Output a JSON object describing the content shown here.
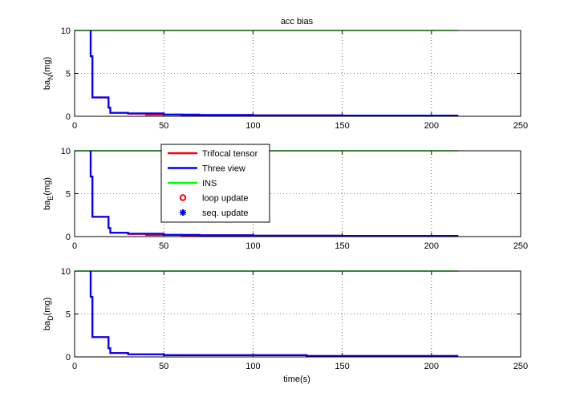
{
  "chart_data": {
    "type": "line",
    "title": "acc bias",
    "xlabel": "time(s)",
    "xlim": [
      0,
      250
    ],
    "xticks": [
      "0",
      "50",
      "100",
      "150",
      "200",
      "250"
    ],
    "grid": true,
    "legend": {
      "placement": "upper-left of second subplot",
      "entries": [
        {
          "name": "Trifocal tensor",
          "color": "#ff0000",
          "style": "line"
        },
        {
          "name": "Three view",
          "color": "#0000ff",
          "style": "line"
        },
        {
          "name": "INS",
          "color": "#00ff00",
          "style": "line"
        },
        {
          "name": "loop update",
          "color": "#ff0000",
          "style": "circle"
        },
        {
          "name": "seq. update",
          "color": "#0000ff",
          "style": "star"
        }
      ]
    },
    "subplots": [
      {
        "ylabel_main": "ba",
        "ylabel_sub": "N",
        "ylabel_unit": "(mg)",
        "ylim": [
          0,
          10
        ],
        "yticks": [
          "0",
          "5",
          "10"
        ],
        "series": [
          {
            "name": "INS",
            "color": "#00ff00",
            "x": [
              0,
              215
            ],
            "y": [
              10,
              10
            ]
          },
          {
            "name": "Trifocal tensor",
            "color": "#ff0000",
            "x": [
              9,
              9,
              10,
              10,
              19,
              19,
              20,
              20,
              30,
              30,
              40,
              40,
              60,
              60,
              100,
              100,
              150,
              150,
              215
            ],
            "y": [
              10,
              7,
              7,
              2.2,
              2.2,
              1,
              1,
              0.4,
              0.4,
              0.3,
              0.3,
              0.2,
              0.2,
              0.15,
              0.15,
              0.1,
              0.1,
              0.08,
              0.08
            ]
          },
          {
            "name": "Three view",
            "color": "#0000ff",
            "x": [
              9,
              9,
              10,
              10,
              19,
              19,
              20,
              20,
              30,
              30,
              50,
              50,
              70,
              70,
              100,
              100,
              150,
              150,
              215
            ],
            "y": [
              10,
              7,
              7,
              2.2,
              2.2,
              1,
              1,
              0.4,
              0.4,
              0.35,
              0.35,
              0.2,
              0.2,
              0.15,
              0.15,
              0.1,
              0.1,
              0.08,
              0.08
            ]
          }
        ]
      },
      {
        "ylabel_main": "ba",
        "ylabel_sub": "E",
        "ylabel_unit": "(mg)",
        "ylim": [
          0,
          10
        ],
        "yticks": [
          "0",
          "5",
          "10"
        ],
        "series": [
          {
            "name": "INS",
            "color": "#00ff00",
            "x": [
              0,
              215
            ],
            "y": [
              10,
              10
            ]
          },
          {
            "name": "Trifocal tensor",
            "color": "#ff0000",
            "x": [
              9,
              9,
              10,
              10,
              19,
              19,
              20,
              20,
              30,
              30,
              40,
              40,
              60,
              60,
              100,
              100,
              150,
              150,
              215
            ],
            "y": [
              10,
              7,
              7,
              2.3,
              2.3,
              1,
              1,
              0.45,
              0.45,
              0.3,
              0.3,
              0.2,
              0.2,
              0.15,
              0.15,
              0.1,
              0.1,
              0.08,
              0.08
            ]
          },
          {
            "name": "Three view",
            "color": "#0000ff",
            "x": [
              9,
              9,
              10,
              10,
              19,
              19,
              20,
              20,
              30,
              30,
              50,
              50,
              70,
              70,
              100,
              100,
              150,
              150,
              215
            ],
            "y": [
              10,
              7,
              7,
              2.3,
              2.3,
              1,
              1,
              0.45,
              0.45,
              0.35,
              0.35,
              0.2,
              0.2,
              0.15,
              0.15,
              0.1,
              0.1,
              0.08,
              0.08
            ]
          }
        ]
      },
      {
        "ylabel_main": "ba",
        "ylabel_sub": "D",
        "ylabel_unit": "(mg)",
        "ylim": [
          0,
          10
        ],
        "yticks": [
          "0",
          "5",
          "10"
        ],
        "series": [
          {
            "name": "INS",
            "color": "#00ff00",
            "x": [
              0,
              215
            ],
            "y": [
              10,
              10
            ]
          },
          {
            "name": "Trifocal tensor",
            "color": "#ff0000",
            "x": [
              9,
              9,
              10,
              10,
              19,
              19,
              20,
              20,
              30,
              30,
              50,
              50,
              130,
              130,
              215
            ],
            "y": [
              10,
              7,
              7,
              2.3,
              2.3,
              1,
              1,
              0.45,
              0.45,
              0.3,
              0.3,
              0.2,
              0.2,
              0.1,
              0.1
            ]
          },
          {
            "name": "Three view",
            "color": "#0000ff",
            "x": [
              9,
              9,
              10,
              10,
              19,
              19,
              20,
              20,
              30,
              30,
              50,
              50,
              130,
              130,
              215
            ],
            "y": [
              10,
              7,
              7,
              2.3,
              2.3,
              1,
              1,
              0.45,
              0.45,
              0.3,
              0.3,
              0.2,
              0.2,
              0.1,
              0.1
            ]
          }
        ]
      }
    ]
  }
}
